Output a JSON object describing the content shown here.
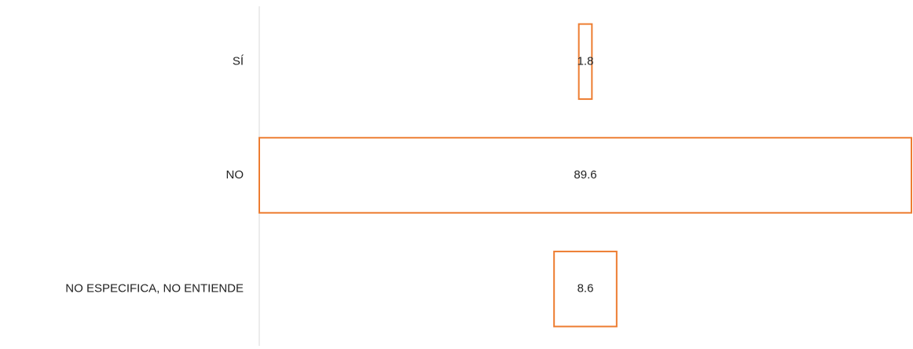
{
  "chart_data": {
    "type": "funnel",
    "categories": [
      "SÍ",
      "NO",
      "NO ESPECIFICA, NO ENTIENDE"
    ],
    "values": [
      1.8,
      89.6,
      8.6
    ],
    "color": "#ed7d31"
  }
}
